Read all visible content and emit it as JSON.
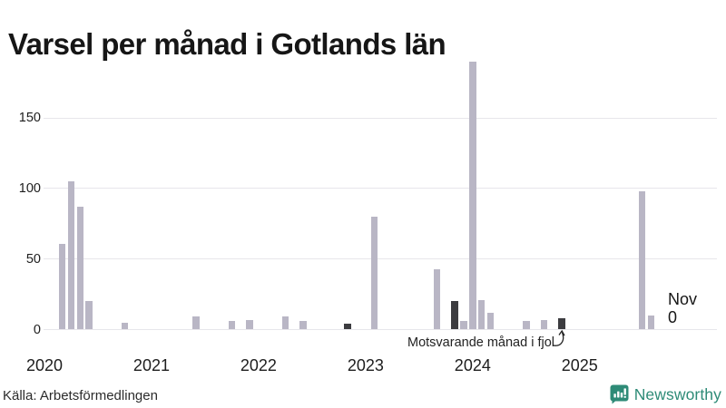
{
  "title": "Varsel per månad i Gotlands län",
  "source_credit": "Källa: Arbetsförmedlingen",
  "branding": {
    "name": "Newsworthy",
    "color": "#2E8B77",
    "icon": "newsworthy-chart-bubble-icon"
  },
  "annotation": {
    "text": "Motsvarande månad i fjol",
    "points_to": "2024-11"
  },
  "current_point_label": {
    "line1": "Nov",
    "line2": "0",
    "month": "2025-11"
  },
  "chart_data": {
    "type": "bar",
    "title": "Varsel per månad i Gotlands län",
    "xlabel": "",
    "ylabel": "",
    "x_start": "2020-01",
    "x_end": "2025-12",
    "x_tick_labels": [
      "2020",
      "2021",
      "2022",
      "2023",
      "2024",
      "2025"
    ],
    "y_ticks": [
      0,
      50,
      100,
      150
    ],
    "y_tick_labels": [
      "0",
      "50",
      "100",
      "150"
    ],
    "ylim": [
      0,
      195
    ],
    "grid": "horizontal",
    "legend": "none",
    "bar_color": "#b9b6c5",
    "highlight_color": "#3c3c40",
    "highlight_meaning": "Motsvarande månad i fjol",
    "points": [
      {
        "month": "2020-03",
        "value": 61
      },
      {
        "month": "2020-04",
        "value": 105
      },
      {
        "month": "2020-05",
        "value": 87
      },
      {
        "month": "2020-06",
        "value": 20
      },
      {
        "month": "2020-10",
        "value": 5
      },
      {
        "month": "2021-06",
        "value": 9
      },
      {
        "month": "2021-10",
        "value": 6
      },
      {
        "month": "2021-12",
        "value": 7
      },
      {
        "month": "2022-04",
        "value": 9
      },
      {
        "month": "2022-06",
        "value": 6
      },
      {
        "month": "2022-11",
        "value": 4,
        "highlight": true
      },
      {
        "month": "2023-02",
        "value": 80
      },
      {
        "month": "2023-09",
        "value": 43
      },
      {
        "month": "2023-11",
        "value": 20,
        "highlight": true
      },
      {
        "month": "2023-12",
        "value": 6
      },
      {
        "month": "2024-01",
        "value": 190
      },
      {
        "month": "2024-02",
        "value": 21
      },
      {
        "month": "2024-03",
        "value": 12
      },
      {
        "month": "2024-07",
        "value": 6
      },
      {
        "month": "2024-09",
        "value": 7
      },
      {
        "month": "2024-11",
        "value": 8,
        "highlight": true
      },
      {
        "month": "2025-08",
        "value": 98
      },
      {
        "month": "2025-09",
        "value": 10
      },
      {
        "month": "2025-11",
        "value": 0,
        "label": "Nov 0"
      }
    ]
  }
}
